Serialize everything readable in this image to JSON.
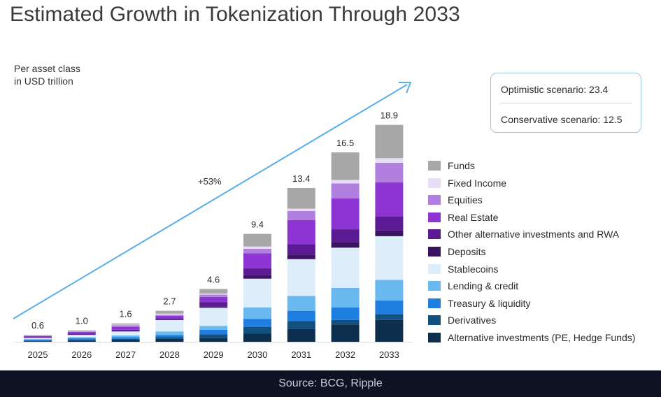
{
  "title": "Estimated Growth in Tokenization Through 2033",
  "unit_label": [
    "Per asset class",
    "in USD trillion"
  ],
  "scenarios": {
    "optimistic": "Optimistic scenario: 23.4",
    "conservative": "Conservative scenario: 12.5"
  },
  "source": "Source: BCG, Ripple",
  "colors": {
    "Funds": "#a7a7a7",
    "Fixed Income": "#e7ddf6",
    "Equities": "#b07fe0",
    "Real Estate": "#8c35d2",
    "Other alternative investments and RWA": "#5b1a94",
    "Deposits": "#3a1462",
    "Stablecoins": "#ddedfa",
    "Lending & credit": "#6ab8f0",
    "Treasury & liquidity": "#1f7fe0",
    "Derivatives": "#12507f",
    "Alternative investments (PE, Hedge Funds)": "#0d2f4d",
    "arrow": "#5aaee8"
  },
  "chart_data": {
    "type": "bar",
    "stacked": true,
    "title": "Estimated Growth in Tokenization Through 2033",
    "ylabel": "Per asset class in USD trillion",
    "xlabel": "",
    "ylim": [
      0,
      19
    ],
    "categories": [
      "2025",
      "2026",
      "2027",
      "2028",
      "2029",
      "2030",
      "2031",
      "2032",
      "2033"
    ],
    "totals": [
      0.6,
      1.0,
      1.6,
      2.7,
      4.6,
      9.4,
      13.4,
      16.5,
      18.9
    ],
    "total_labels": [
      "0.6",
      "1.0",
      "1.6",
      "2.7",
      "4.6",
      "9.4",
      "13.4",
      "16.5",
      "18.9"
    ],
    "growth_annotation": "+53%",
    "legend_order": [
      "Funds",
      "Fixed Income",
      "Equities",
      "Real Estate",
      "Other alternative investments and RWA",
      "Deposits",
      "Stablecoins",
      "Lending & credit",
      "Treasury & liquidity",
      "Derivatives",
      "Alternative investments (PE, Hedge Funds)"
    ],
    "series": [
      {
        "name": "Alternative investments (PE, Hedge Funds)",
        "values": [
          0.05,
          0.1,
          0.15,
          0.25,
          0.35,
          0.7,
          1.1,
          1.5,
          1.9
        ]
      },
      {
        "name": "Derivatives",
        "values": [
          0.05,
          0.08,
          0.1,
          0.15,
          0.3,
          0.6,
          0.7,
          0.4,
          0.5
        ]
      },
      {
        "name": "Treasury & liquidity",
        "values": [
          0.08,
          0.12,
          0.15,
          0.2,
          0.4,
          0.7,
          0.9,
          1.1,
          1.2
        ]
      },
      {
        "name": "Lending & credit",
        "values": [
          0.05,
          0.1,
          0.15,
          0.3,
          0.35,
          1.0,
          1.3,
          1.7,
          1.8
        ]
      },
      {
        "name": "Stablecoins",
        "values": [
          0.1,
          0.2,
          0.35,
          1.0,
          1.6,
          2.5,
          3.2,
          3.5,
          3.8
        ]
      },
      {
        "name": "Deposits",
        "values": [
          0.02,
          0.03,
          0.05,
          0.05,
          0.1,
          0.3,
          0.4,
          0.5,
          0.5
        ]
      },
      {
        "name": "Other alternative investments and RWA",
        "values": [
          0.05,
          0.07,
          0.1,
          0.1,
          0.4,
          0.6,
          0.9,
          1.1,
          1.2
        ]
      },
      {
        "name": "Real Estate",
        "values": [
          0.1,
          0.15,
          0.25,
          0.2,
          0.45,
          1.3,
          2.1,
          2.7,
          3.0
        ]
      },
      {
        "name": "Equities",
        "values": [
          0.03,
          0.05,
          0.15,
          0.1,
          0.2,
          0.4,
          0.8,
          1.3,
          1.7
        ]
      },
      {
        "name": "Fixed Income",
        "values": [
          0.02,
          0.03,
          0.05,
          0.1,
          0.1,
          0.2,
          0.2,
          0.3,
          0.4
        ]
      },
      {
        "name": "Funds",
        "values": [
          0.05,
          0.07,
          0.1,
          0.25,
          0.4,
          1.1,
          1.8,
          2.4,
          2.9
        ]
      }
    ]
  }
}
